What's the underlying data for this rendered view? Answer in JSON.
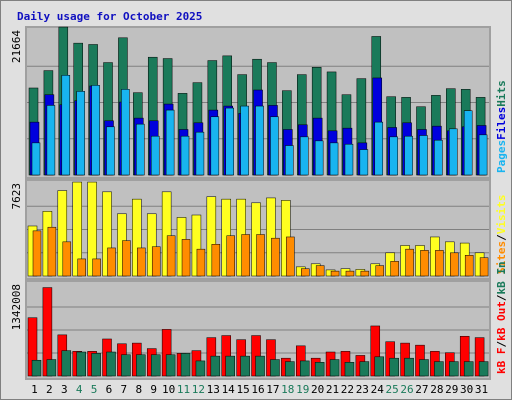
{
  "chart_data": {
    "type": "bar",
    "title": "Daily usage for October 2025",
    "days": [
      "1",
      "2",
      "3",
      "4",
      "5",
      "6",
      "7",
      "8",
      "9",
      "10",
      "11",
      "12",
      "13",
      "14",
      "15",
      "16",
      "17",
      "18",
      "19",
      "20",
      "21",
      "22",
      "23",
      "24",
      "25",
      "26",
      "27",
      "28",
      "29",
      "30",
      "31"
    ],
    "weekend_days": [
      "4",
      "5",
      "11",
      "12",
      "18",
      "19",
      "25",
      "26"
    ],
    "colors": {
      "hits": "#1a7a5a",
      "files": "#0000dd",
      "pages": "#18b4f0",
      "visits": "#ffff20",
      "sites": "#ff8c00",
      "kbin": "#1a7a5a",
      "kbout": "#ff0000",
      "weekday_tick": "#000000",
      "weekend_tick": "#1a7a5a",
      "title": "#1010c0"
    },
    "panels": [
      {
        "id": "hits-files-pages",
        "max_label": "21664",
        "ymax": 21664,
        "legend": [
          {
            "text": "Pages",
            "color": "#18b4f0"
          },
          {
            "text": "Files",
            "color": "#0000dd"
          },
          {
            "text": "Hits",
            "color": "#1a7a5a"
          }
        ],
        "series": [
          {
            "name": "Hits",
            "values": [
              13000,
              15600,
              22100,
              19700,
              19500,
              16800,
              20500,
              12300,
              17600,
              17400,
              12200,
              13800,
              17100,
              17800,
              15000,
              17300,
              16800,
              12600,
              15000,
              16100,
              15400,
              12000,
              14400,
              20700,
              11700,
              11600,
              10200,
              11900,
              12900,
              12800,
              11600
            ]
          },
          {
            "name": "Files",
            "values": [
              7900,
              12000,
              10500,
              11100,
              13300,
              8100,
              10900,
              8500,
              8100,
              10600,
              6800,
              7800,
              9700,
              10300,
              9200,
              12700,
              10400,
              6800,
              7500,
              8500,
              6600,
              7000,
              4800,
              14500,
              7100,
              7800,
              6800,
              7300,
              6600,
              7200,
              7400
            ]
          },
          {
            "name": "Pages",
            "values": [
              4800,
              10400,
              14900,
              12500,
              13400,
              7200,
              12800,
              7600,
              5800,
              9700,
              5800,
              6400,
              8700,
              10000,
              10300,
              10300,
              8700,
              4400,
              5700,
              5100,
              4800,
              4600,
              3800,
              7900,
              5700,
              5800,
              5900,
              5200,
              6900,
              9600,
              6000
            ]
          }
        ]
      },
      {
        "id": "visits-sites",
        "max_label": "7623",
        "ymax": 7623,
        "legend": [
          {
            "text": "Sites",
            "color": "#ff8c00"
          },
          {
            "text": "/",
            "color": "#000000"
          },
          {
            "text": "Visits",
            "color": "#ffff20"
          }
        ],
        "series": [
          {
            "name": "Visits",
            "values": [
              4100,
              5300,
              7000,
              7700,
              7700,
              6900,
              5100,
              6300,
              5100,
              6900,
              4800,
              5000,
              6500,
              6300,
              6300,
              6000,
              6400,
              6200,
              750,
              1000,
              500,
              600,
              540,
              1000,
              1900,
              2500,
              2500,
              3200,
              2800,
              2700,
              1900
            ]
          },
          {
            "name": "Sites",
            "values": [
              3700,
              4000,
              2800,
              1400,
              1400,
              2300,
              2900,
              2300,
              2400,
              3300,
              3000,
              2200,
              2600,
              3300,
              3400,
              3400,
              3100,
              3200,
              600,
              850,
              400,
              400,
              400,
              850,
              1200,
              2200,
              2100,
              2100,
              1900,
              1700,
              1500
            ]
          }
        ]
      },
      {
        "id": "kb-in-out",
        "max_label": "1342008",
        "ymax": 1342008,
        "legend": [
          {
            "text": "kB F",
            "color": "#ff0000"
          },
          {
            "text": "/",
            "color": "#000000"
          },
          {
            "text": "kB Out",
            "color": "#ff0000"
          },
          {
            "text": "/",
            "color": "#000000"
          },
          {
            "text": "kB In",
            "color": "#1a7a5a"
          }
        ],
        "series": [
          {
            "name": "kB Out",
            "values": [
              850000,
              1290000,
              600000,
              360000,
              360000,
              540000,
              470000,
              480000,
              400000,
              680000,
              330000,
              370000,
              560000,
              590000,
              530000,
              590000,
              530000,
              260000,
              440000,
              260000,
              350000,
              360000,
              300000,
              730000,
              500000,
              480000,
              450000,
              360000,
              340000,
              580000,
              560000
            ]
          },
          {
            "name": "kB In",
            "values": [
              230000,
              240000,
              370000,
              350000,
              330000,
              350000,
              310000,
              310000,
              310000,
              310000,
              330000,
              220000,
              290000,
              290000,
              290000,
              290000,
              240000,
              210000,
              220000,
              200000,
              240000,
              200000,
              210000,
              280000,
              260000,
              260000,
              240000,
              210000,
              210000,
              210000,
              210000
            ]
          }
        ]
      }
    ]
  }
}
